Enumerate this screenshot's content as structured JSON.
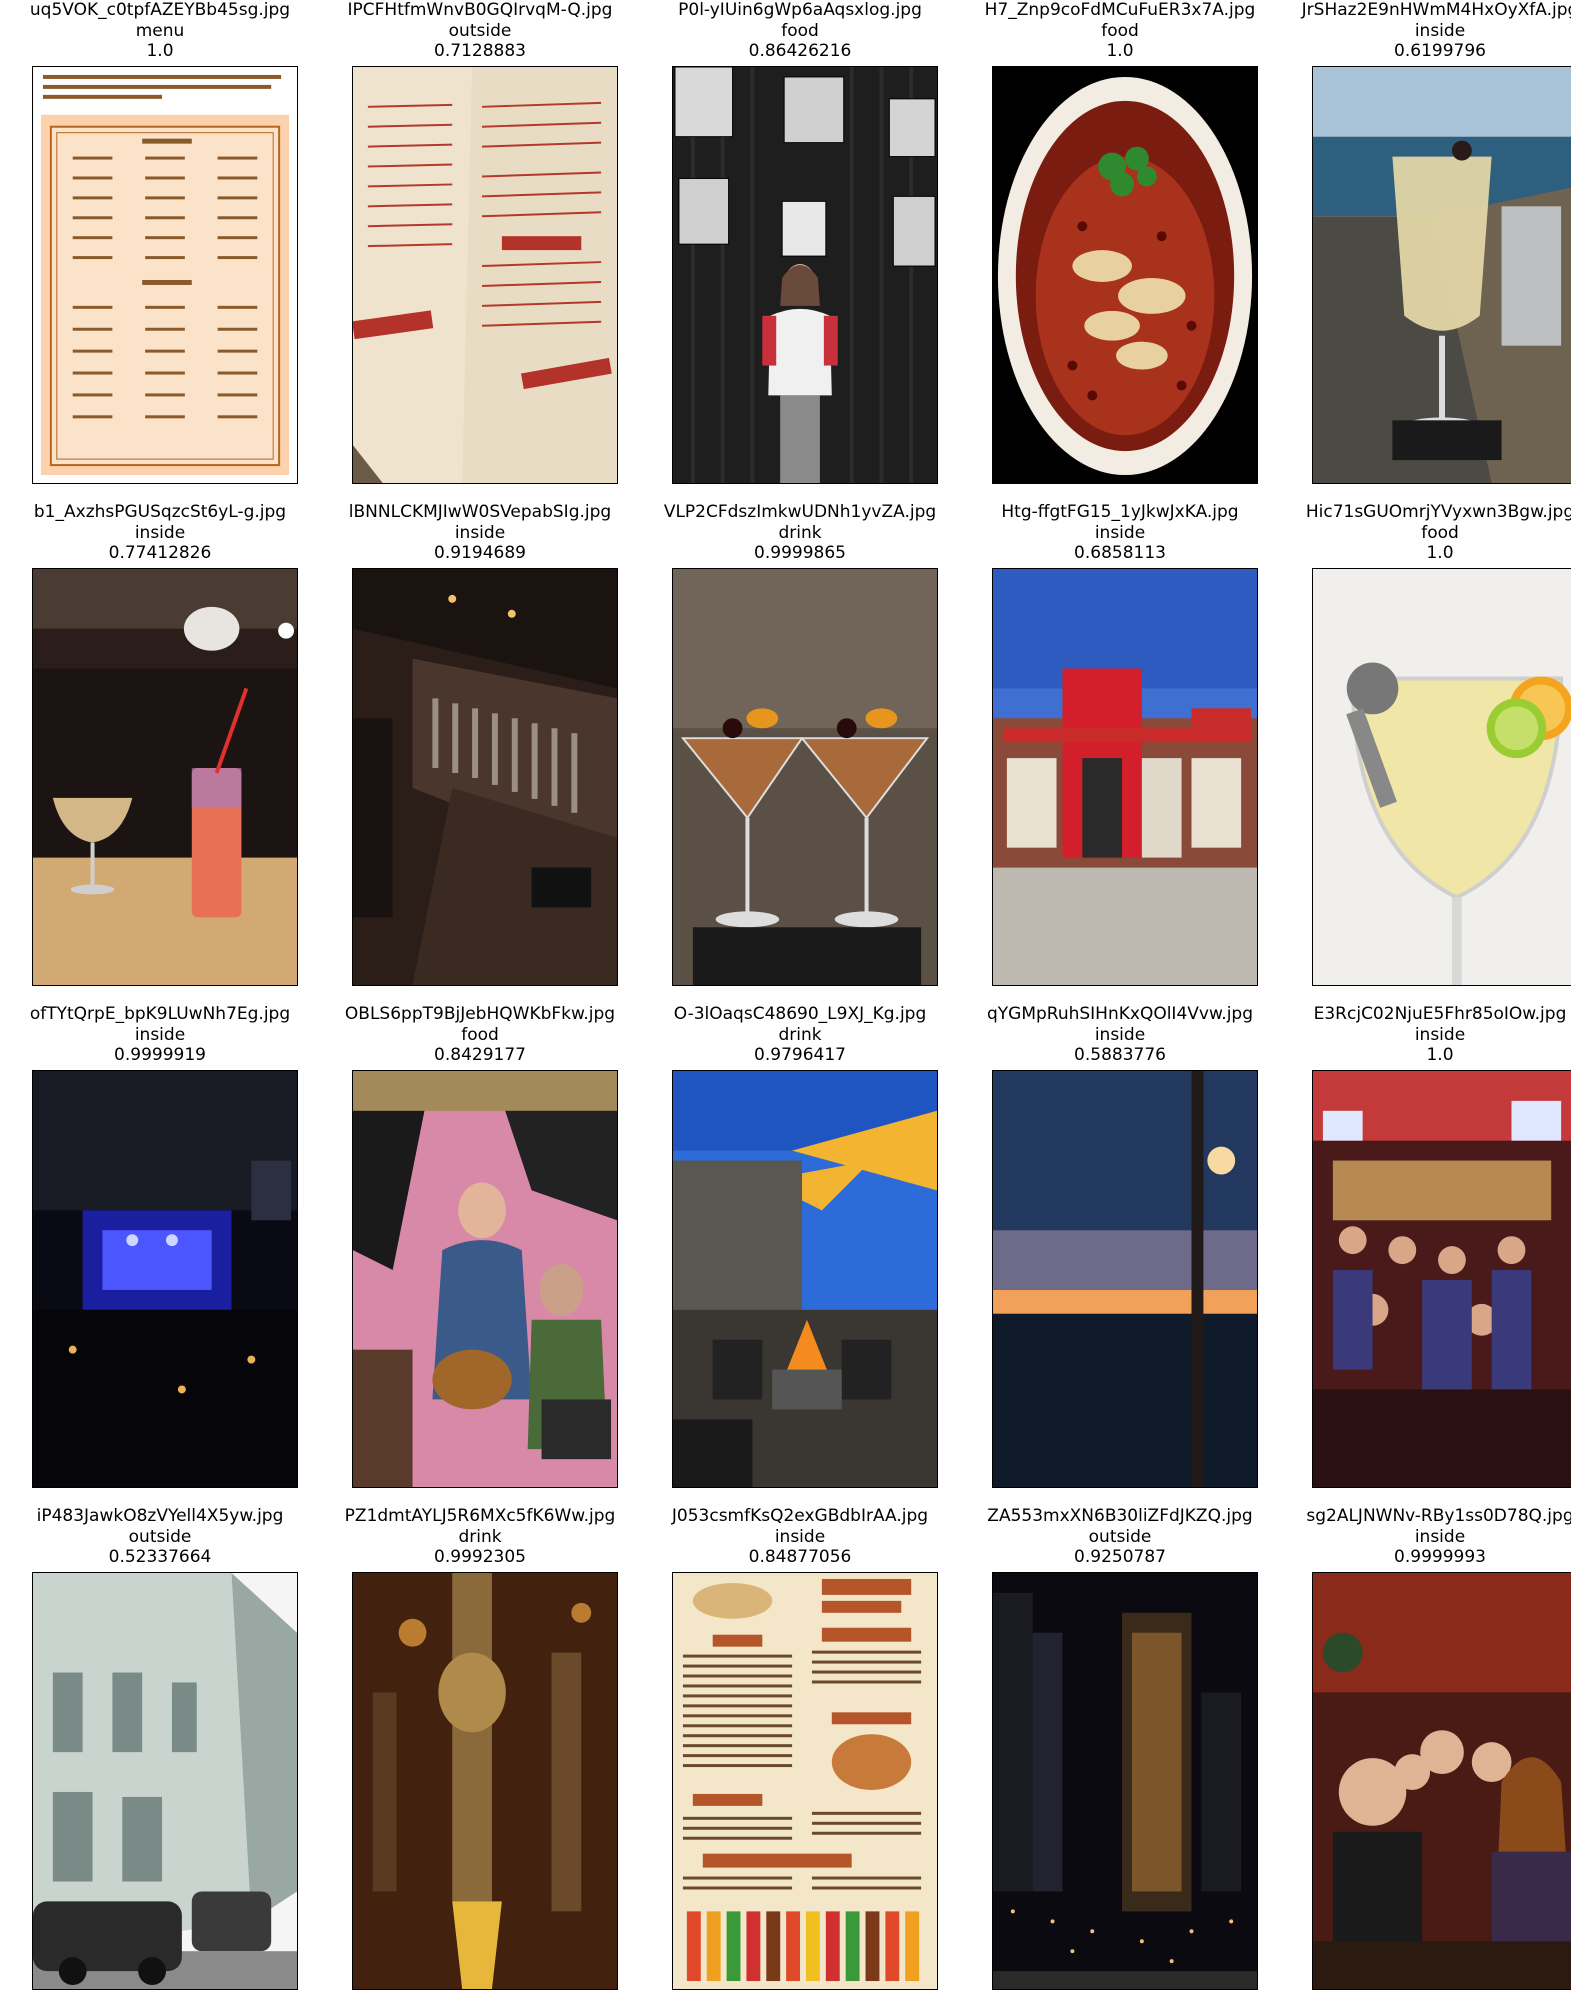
{
  "tiles": [
    {
      "filename": "uq5VOK_c0tpfAZEYBb45sg.jpg",
      "label": "menu",
      "score": "1.0",
      "scene": "menu-image"
    },
    {
      "filename": "IPCFHtfmWnvB0GQIrvqM-Q.jpg",
      "label": "outside",
      "score": "0.7128883",
      "scene": "menu-paper-image"
    },
    {
      "filename": "P0l-yIUin6gWp6aAqsxlog.jpg",
      "label": "food",
      "score": "0.86426216",
      "scene": "person-wall-image"
    },
    {
      "filename": "H7_Znp9coFdMCuFuER3x7A.jpg",
      "label": "food",
      "score": "1.0",
      "scene": "spicy-bowl-image"
    },
    {
      "filename": "JrSHaz2E9nHWmM4HxOyXfA.jpg",
      "label": "inside",
      "score": "0.6199796",
      "scene": "cocktail-ocean-image"
    },
    {
      "filename": "b1_AxzhsPGUSqzcSt6yL-g.jpg",
      "label": "inside",
      "score": "0.77412826",
      "scene": "drinks-table-image"
    },
    {
      "filename": "lBNNLCKMJIwW0SVepabSIg.jpg",
      "label": "inside",
      "score": "0.9194689",
      "scene": "bar-interior-image"
    },
    {
      "filename": "VLP2CFdszImkwUDNh1yvZA.jpg",
      "label": "drink",
      "score": "0.9999865",
      "scene": "martini-glasses-image"
    },
    {
      "filename": "Htg-ffgtFG15_1yJkwJxKA.jpg",
      "label": "inside",
      "score": "0.6858113",
      "scene": "quiktrip-store-image"
    },
    {
      "filename": "Hic71sGUOmrjYVyxwn3Bgw.jpg",
      "label": "food",
      "score": "1.0",
      "scene": "margarita-image"
    },
    {
      "filename": "ofTYtQrpE_bpK9LUwNh7Eg.jpg",
      "label": "inside",
      "score": "0.9999919",
      "scene": "concert-hall-image"
    },
    {
      "filename": "OBLS6ppT9BjJebHQWKbFkw.jpg",
      "label": "food",
      "score": "0.8429177",
      "scene": "band-performing-image"
    },
    {
      "filename": "O-3lOaqsC48690_L9XJ_Kg.jpg",
      "label": "drink",
      "score": "0.9796417",
      "scene": "patio-firepit-image"
    },
    {
      "filename": "qYGMpRuhSIHnKxQOlI4Vvw.jpg",
      "label": "inside",
      "score": "0.5883776",
      "scene": "sunset-sea-image"
    },
    {
      "filename": "E3RcjC02NjuE5Fhr85oIOw.jpg",
      "label": "inside",
      "score": "1.0",
      "scene": "crowded-bar-image"
    },
    {
      "filename": "iP483JawkO8zVYell4X5yw.jpg",
      "label": "outside",
      "score": "0.52337664",
      "scene": "street-cars-image"
    },
    {
      "filename": "PZ1dmtAYLJ5R6MXc5fK6Ww.jpg",
      "label": "drink",
      "score": "0.9992305",
      "scene": "beer-taps-image"
    },
    {
      "filename": "J053csmfKsQ2exGBdbIrAA.jpg",
      "label": "inside",
      "score": "0.84877056",
      "scene": "mexican-menu-image"
    },
    {
      "filename": "ZA553mxXN6B30liZFdJKZQ.jpg",
      "label": "outside",
      "score": "0.9250787",
      "scene": "city-night-image"
    },
    {
      "filename": "sg2ALJNWNv-RBy1ss0D78Q.jpg",
      "label": "inside",
      "score": "0.9999993",
      "scene": "group-photo-image"
    }
  ]
}
